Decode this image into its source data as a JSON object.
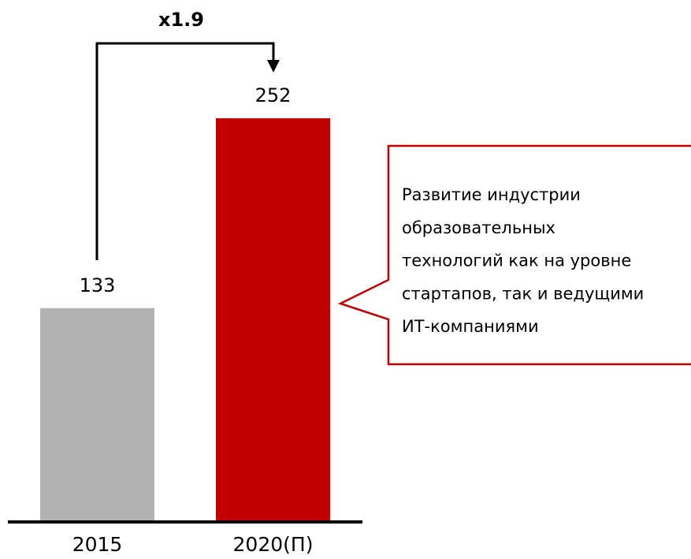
{
  "chart_data": {
    "type": "bar",
    "categories": [
      "2015",
      "2020(П)"
    ],
    "values": [
      133,
      252
    ],
    "colors": [
      "#b2b2b2",
      "#c00000"
    ],
    "growth_label": "x1.9",
    "callout": [
      "Развитие индустрии",
      "образовательных",
      "технологий как на уровне",
      "стартапов, так и ведущими",
      "ИТ-компаниями"
    ]
  }
}
